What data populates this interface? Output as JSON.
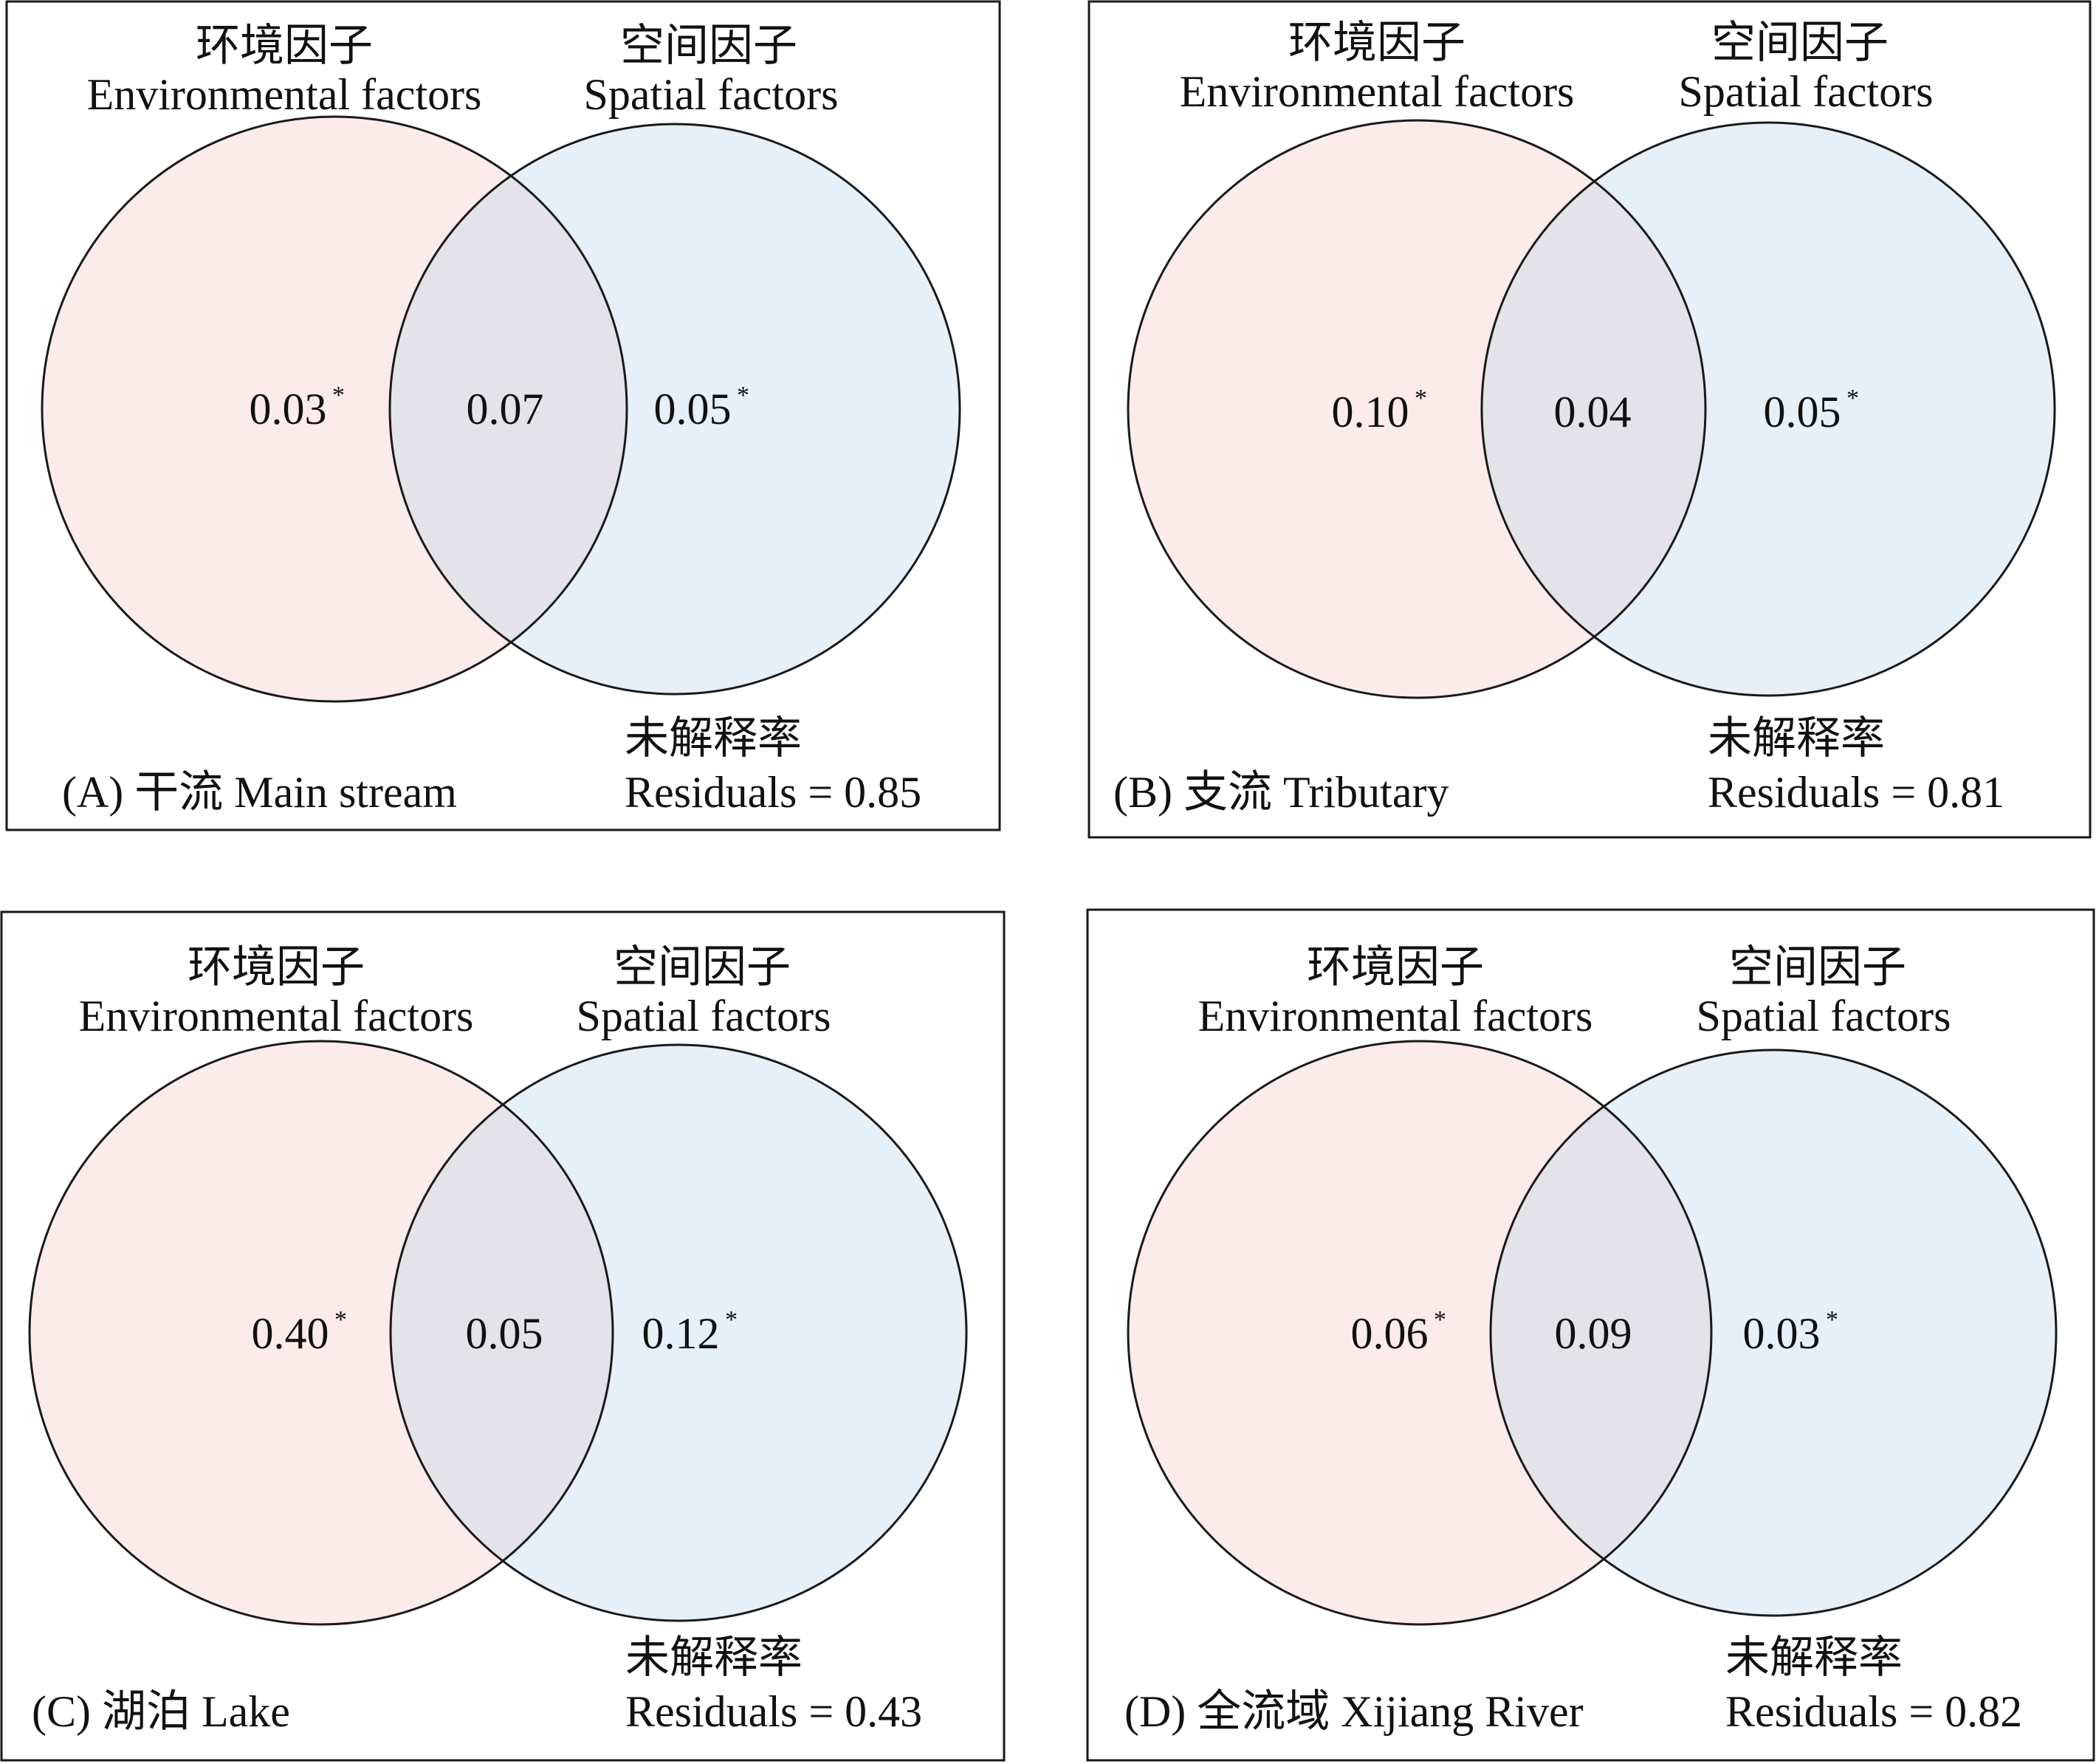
{
  "colors": {
    "environmental_fill": "#fbeceb",
    "spatial_fill": "#e5f0f9",
    "overlap_fill": "#e4e3ea",
    "stroke": "#1a1a1a"
  },
  "panels": [
    {
      "id": "A",
      "env_title_cn": "环境因子",
      "env_title_en": "Environmental factors",
      "spa_title_cn": "空间因子",
      "spa_title_en": "Spatial factors",
      "env_only": "0.03",
      "env_mark": "*",
      "shared": "0.07",
      "spa_only": "0.05",
      "spa_mark": "*",
      "unexplained_cn": "未解释率",
      "residuals": "Residuals = 0.85",
      "caption": "(A) 干流 Main stream"
    },
    {
      "id": "B",
      "env_title_cn": "环境因子",
      "env_title_en": "Environmental factors",
      "spa_title_cn": "空间因子",
      "spa_title_en": "Spatial factors",
      "env_only": "0.10",
      "env_mark": "*",
      "shared": "0.04",
      "spa_only": "0.05",
      "spa_mark": "*",
      "unexplained_cn": "未解释率",
      "residuals": "Residuals = 0.81",
      "caption": "(B) 支流 Tributary"
    },
    {
      "id": "C",
      "env_title_cn": "环境因子",
      "env_title_en": "Environmental factors",
      "spa_title_cn": "空间因子",
      "spa_title_en": "Spatial factors",
      "env_only": "0.40",
      "env_mark": "*",
      "shared": "0.05",
      "spa_only": "0.12",
      "spa_mark": "*",
      "unexplained_cn": "未解释率",
      "residuals": "Residuals = 0.43",
      "caption": "(C) 湖泊 Lake"
    },
    {
      "id": "D",
      "env_title_cn": "环境因子",
      "env_title_en": "Environmental factors",
      "spa_title_cn": "空间因子",
      "spa_title_en": "Spatial factors",
      "env_only": "0.06",
      "env_mark": "*",
      "shared": "0.09",
      "spa_only": "0.03",
      "spa_mark": "*",
      "unexplained_cn": "未解释率",
      "residuals": "Residuals = 0.82",
      "caption": "(D) 全流域  Xijiang River"
    }
  ]
}
